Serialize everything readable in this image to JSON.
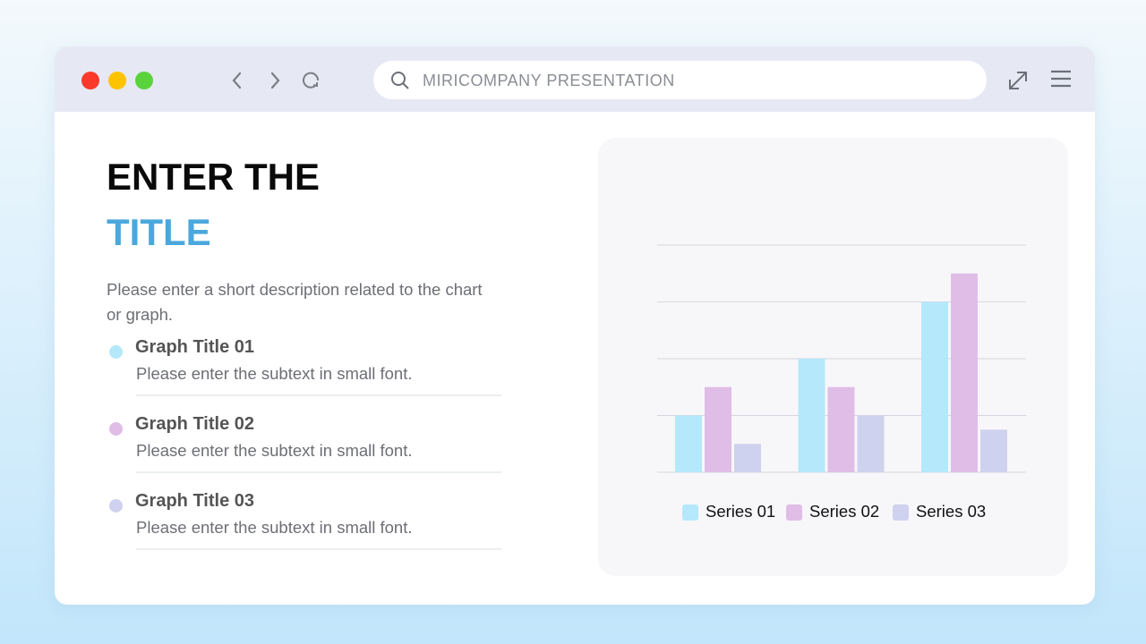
{
  "browser": {
    "search_text": "MIRICOMPANY PRESENTATION",
    "icons": [
      "close-dot",
      "minimize-dot",
      "maximize-dot",
      "back-icon",
      "forward-icon",
      "reload-icon",
      "search-icon",
      "expand-icon",
      "menu-icon"
    ],
    "dot_colors": [
      "#fb3a2b",
      "#fdc300",
      "#5ad23c"
    ]
  },
  "slide": {
    "title_line1": "ENTER THE",
    "title_line2": "TITLE",
    "description": "Please enter a short description related to the chart or graph.",
    "items": [
      {
        "title": "Graph Title 01",
        "subtext": "Please enter the subtext in small font.",
        "color": "#b5e8fb"
      },
      {
        "title": "Graph Title 02",
        "subtext": "Please enter the subtext in small font.",
        "color": "#e0bde6"
      },
      {
        "title": "Graph Title 03",
        "subtext": "Please enter the subtext in small font.",
        "color": "#cfd2ee"
      }
    ]
  },
  "chart_data": {
    "type": "bar",
    "categories": [
      "",
      "",
      ""
    ],
    "grid": true,
    "legend": "bottom",
    "ylim": [
      0,
      4
    ],
    "series": [
      {
        "name": "Series 01",
        "values": [
          1,
          2,
          3
        ],
        "color": "#b5e8fb"
      },
      {
        "name": "Series 02",
        "values": [
          1.5,
          1.5,
          3.5
        ],
        "color": "#e0bde6"
      },
      {
        "name": "Series 03",
        "values": [
          0.5,
          1,
          0.75
        ],
        "color": "#cfd2ee"
      }
    ]
  }
}
